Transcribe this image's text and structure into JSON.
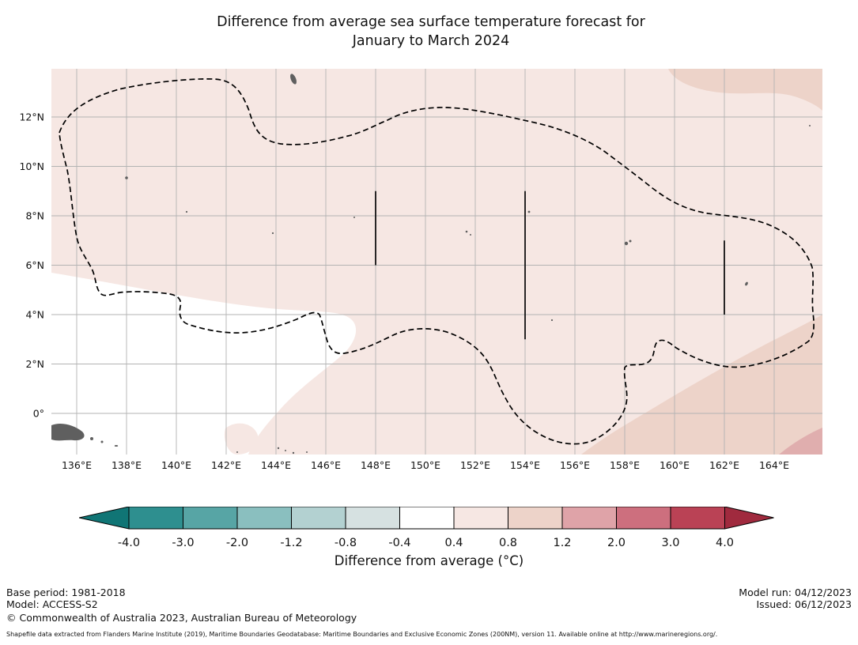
{
  "title": {
    "line1": "Difference from average sea surface temperature forecast for",
    "line2": "January to March 2024"
  },
  "map": {
    "lat_values": [
      0,
      2,
      4,
      6,
      8,
      10,
      12
    ],
    "lat_ticks": [
      "0°",
      "2°N",
      "4°N",
      "6°N",
      "8°N",
      "10°N",
      "12°N"
    ],
    "lon_values": [
      136,
      138,
      140,
      142,
      144,
      146,
      148,
      150,
      152,
      154,
      156,
      158,
      160,
      162,
      164
    ],
    "lon_ticks": [
      "136°E",
      "138°E",
      "140°E",
      "142°E",
      "144°E",
      "146°E",
      "148°E",
      "150°E",
      "152°E",
      "154°E",
      "156°E",
      "158°E",
      "160°E",
      "162°E",
      "164°E"
    ],
    "colors": {
      "band_pos_04_08": "#f6e7e3",
      "band_neg04_pos04": "#ffffff",
      "band_pos_08_12": "#edd3c9",
      "band_pos_12_20": "#e0aeae",
      "grid": "#b3b3b3",
      "land": "#5f5f5f",
      "boundary": "#000000"
    },
    "anomaly_regions": [
      {
        "area": "most of map area",
        "band_c": "+0.4 to +0.8"
      },
      {
        "area": "south-west around Papua New Guinea",
        "band_c": "-0.4 to +0.4"
      },
      {
        "area": "south-east corner",
        "band_c": "+0.8 to +1.2"
      },
      {
        "area": "north-east corner (top edge)",
        "band_c": "+0.8 to +1.2"
      }
    ],
    "boundary_lines": [
      {
        "lon": 148,
        "lat_from": 6,
        "lat_to": 9
      },
      {
        "lon": 154,
        "lat_from": 3,
        "lat_to": 9
      },
      {
        "lon": 162,
        "lat_from": 4,
        "lat_to": 7
      }
    ]
  },
  "colorbar": {
    "tick_labels": [
      "-4.0",
      "-3.0",
      "-2.0",
      "-1.2",
      "-0.8",
      "-0.4",
      "0.4",
      "0.8",
      "1.2",
      "2.0",
      "3.0",
      "4.0"
    ],
    "segment_colors": [
      "#2e8f8f",
      "#57a5a5",
      "#8abfbf",
      "#b3d1d1",
      "#d6e1e1",
      "#ffffff",
      "#f6e7e3",
      "#edd3c9",
      "#dfa3a8",
      "#cd6f7e",
      "#ba4255"
    ],
    "arrow_left_color": "#107575",
    "arrow_right_color": "#a02a3e",
    "caption": "Difference from average (°C)"
  },
  "footer": {
    "base_period": "Base period: 1981-2018",
    "model": "Model: ACCESS-S2",
    "copyright": "© Commonwealth of Australia 2023, Australian Bureau of Meteorology",
    "model_run": "Model run: 04/12/2023",
    "issued": "Issued: 06/12/2023",
    "attribution": "Shapefile data extracted from Flanders Marine Institute (2019), Maritime Boundaries Geodatabase: Maritime Boundaries and Exclusive Economic Zones (200NM), version 11. Available online at http://www.marineregions.org/."
  }
}
